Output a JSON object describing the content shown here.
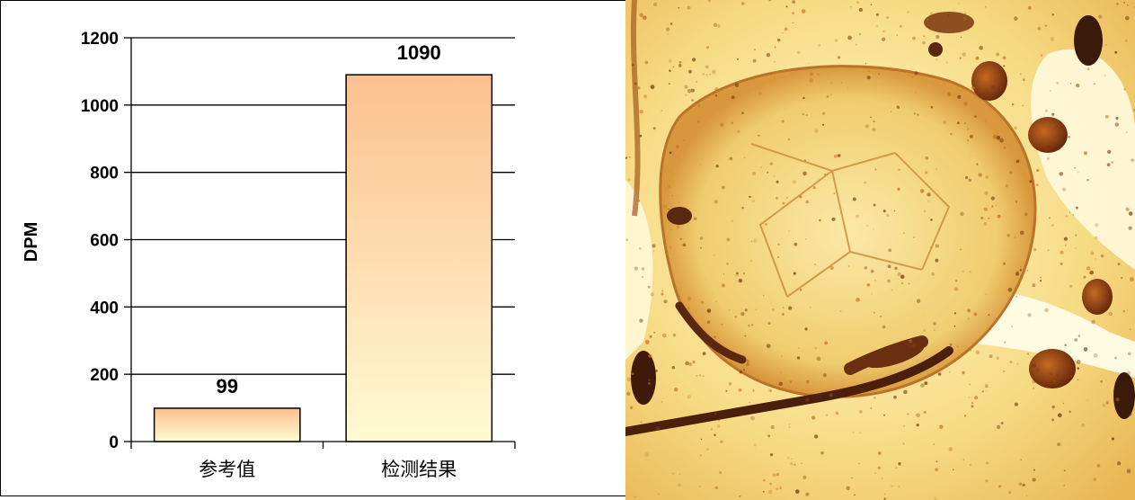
{
  "chart_data": {
    "type": "bar",
    "categories": [
      "参考值",
      "检测结果"
    ],
    "values": [
      99,
      1090
    ],
    "data_labels": [
      "99",
      "1090"
    ],
    "title": "",
    "xlabel": "",
    "ylabel": "DPM",
    "ylim": [
      0,
      1200
    ],
    "yticks": [
      0,
      200,
      400,
      600,
      800,
      1000,
      1200
    ],
    "grid": true,
    "legend": "none",
    "bar_gradient": [
      "#fcc08f",
      "#fffbd2"
    ]
  },
  "photo": {
    "kind": "photomicrograph",
    "palette": [
      "#fff6c2",
      "#f2cd6a",
      "#c8701e",
      "#7a3510",
      "#4a1e0c"
    ]
  }
}
